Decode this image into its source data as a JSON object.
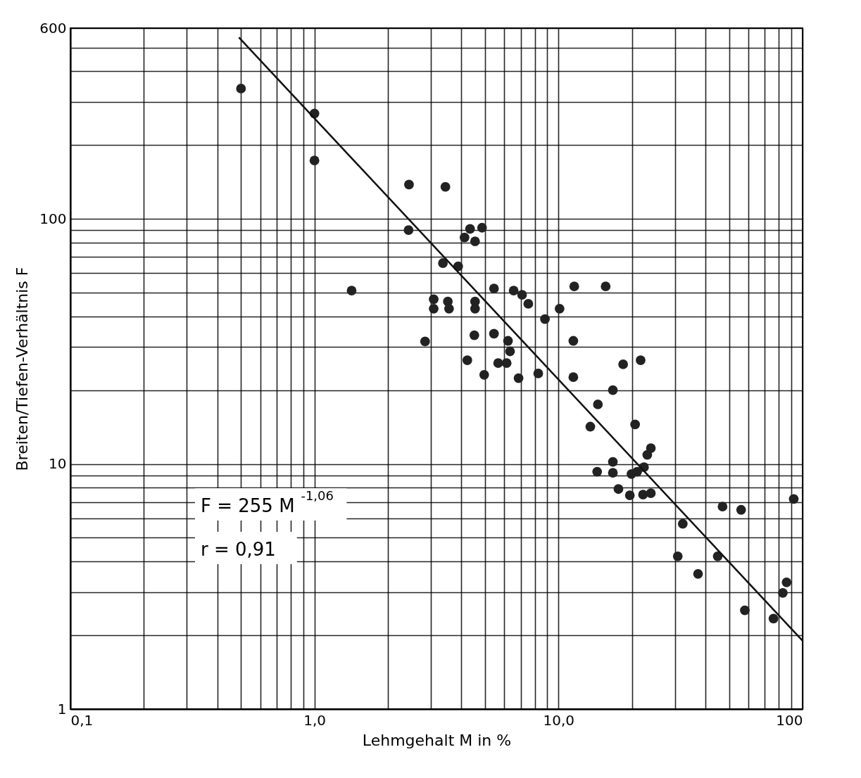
{
  "chart_data": {
    "type": "scatter",
    "xlabel": "Lehmgehalt M in %",
    "ylabel": "Breiten/Tiefen-Verhältnis F",
    "log": "xy",
    "grid": true,
    "xlim": [
      0.1,
      100
    ],
    "ylim": [
      1,
      600
    ],
    "xticks": [
      {
        "value": 0.1,
        "label": "0,1"
      },
      {
        "value": 0.2,
        "label": null
      },
      {
        "value": 0.3,
        "label": null
      },
      {
        "value": 0.4,
        "label": null
      },
      {
        "value": 0.5,
        "label": null
      },
      {
        "value": 0.6,
        "label": null
      },
      {
        "value": 0.7,
        "label": null
      },
      {
        "value": 0.8,
        "label": null
      },
      {
        "value": 0.9,
        "label": null
      },
      {
        "value": 1,
        "label": "1,0"
      },
      {
        "value": 2,
        "label": null
      },
      {
        "value": 3,
        "label": null
      },
      {
        "value": 4,
        "label": null
      },
      {
        "value": 5,
        "label": null
      },
      {
        "value": 6,
        "label": null
      },
      {
        "value": 7,
        "label": null
      },
      {
        "value": 8,
        "label": null
      },
      {
        "value": 9,
        "label": null
      },
      {
        "value": 10,
        "label": "10,0"
      },
      {
        "value": 20,
        "label": null
      },
      {
        "value": 30,
        "label": null
      },
      {
        "value": 40,
        "label": null
      },
      {
        "value": 50,
        "label": null
      },
      {
        "value": 60,
        "label": null
      },
      {
        "value": 70,
        "label": null
      },
      {
        "value": 80,
        "label": null
      },
      {
        "value": 90,
        "label": null
      },
      100
    ],
    "yticks": [
      1,
      {
        "value": 2,
        "label": null
      },
      {
        "value": 3,
        "label": null
      },
      {
        "value": 4,
        "label": null
      },
      {
        "value": 5,
        "label": null
      },
      {
        "value": 6,
        "label": null
      },
      {
        "value": 7,
        "label": null
      },
      {
        "value": 8,
        "label": null
      },
      {
        "value": 9,
        "label": null
      },
      10,
      {
        "value": 20,
        "label": null
      },
      {
        "value": 30,
        "label": null
      },
      {
        "value": 40,
        "label": null
      },
      {
        "value": 50,
        "label": null
      },
      {
        "value": 60,
        "label": null
      },
      {
        "value": 70,
        "label": null
      },
      {
        "value": 80,
        "label": null
      },
      {
        "value": 90,
        "label": null
      },
      100,
      {
        "value": 200,
        "label": null
      },
      {
        "value": 300,
        "label": null
      },
      {
        "value": 400,
        "label": null
      },
      {
        "value": 500,
        "label": null
      },
      600
    ],
    "annotations": [
      "F = 255 M$^{-1,06}$",
      "r = 0,91"
    ],
    "series": [
      {
        "marker": "circle",
        "color": "#222222",
        "x": [
          0.5,
          1.0,
          1.0,
          1.42,
          2.44,
          3.44,
          2.43,
          4.12,
          4.34,
          4.86,
          4.55,
          3.36,
          3.88,
          5.44,
          6.55,
          7.09,
          7.52,
          11.6,
          15.6,
          3.08,
          3.08,
          3.52,
          3.56,
          4.55,
          4.55,
          10.1,
          8.8,
          2.84,
          4.52,
          5.44,
          6.21,
          6.33,
          11.5,
          4.23,
          5.66,
          6.13,
          4.96,
          6.86,
          8.26,
          11.5,
          16.7,
          18.4,
          21.7,
          14.5,
          13.5,
          20.6,
          23.9,
          23.1,
          16.7,
          14.4,
          16.7,
          19.9,
          21.0,
          22.4,
          17.6,
          19.6,
          22.2,
          23.9,
          47,
          56,
          92,
          32.3,
          30.8,
          44.9,
          37.3,
          58,
          76,
          83,
          86
        ],
        "values": [
          340,
          269,
          173,
          51,
          138,
          135,
          90,
          84,
          91,
          92,
          81,
          66,
          64,
          52,
          51,
          49,
          45,
          53,
          53,
          47,
          43,
          46,
          43,
          46,
          43,
          43,
          39,
          31.6,
          33.5,
          34,
          31.8,
          28.8,
          31.8,
          26.5,
          25.8,
          25.8,
          23.1,
          22.4,
          23.4,
          22.6,
          20,
          25.5,
          26.5,
          17.5,
          14.2,
          14.5,
          11.6,
          10.9,
          10.2,
          9.3,
          9.2,
          9.1,
          9.3,
          9.7,
          7.9,
          7.45,
          7.5,
          7.6,
          6.7,
          6.5,
          7.2,
          5.7,
          4.2,
          4.2,
          3.56,
          2.53,
          2.34,
          2.98,
          3.29
        ]
      },
      {
        "type": "line",
        "marker": "none",
        "color": "#111111",
        "x": [
          0.49,
          100
        ],
        "values": [
          550,
          1.9
        ]
      }
    ]
  }
}
